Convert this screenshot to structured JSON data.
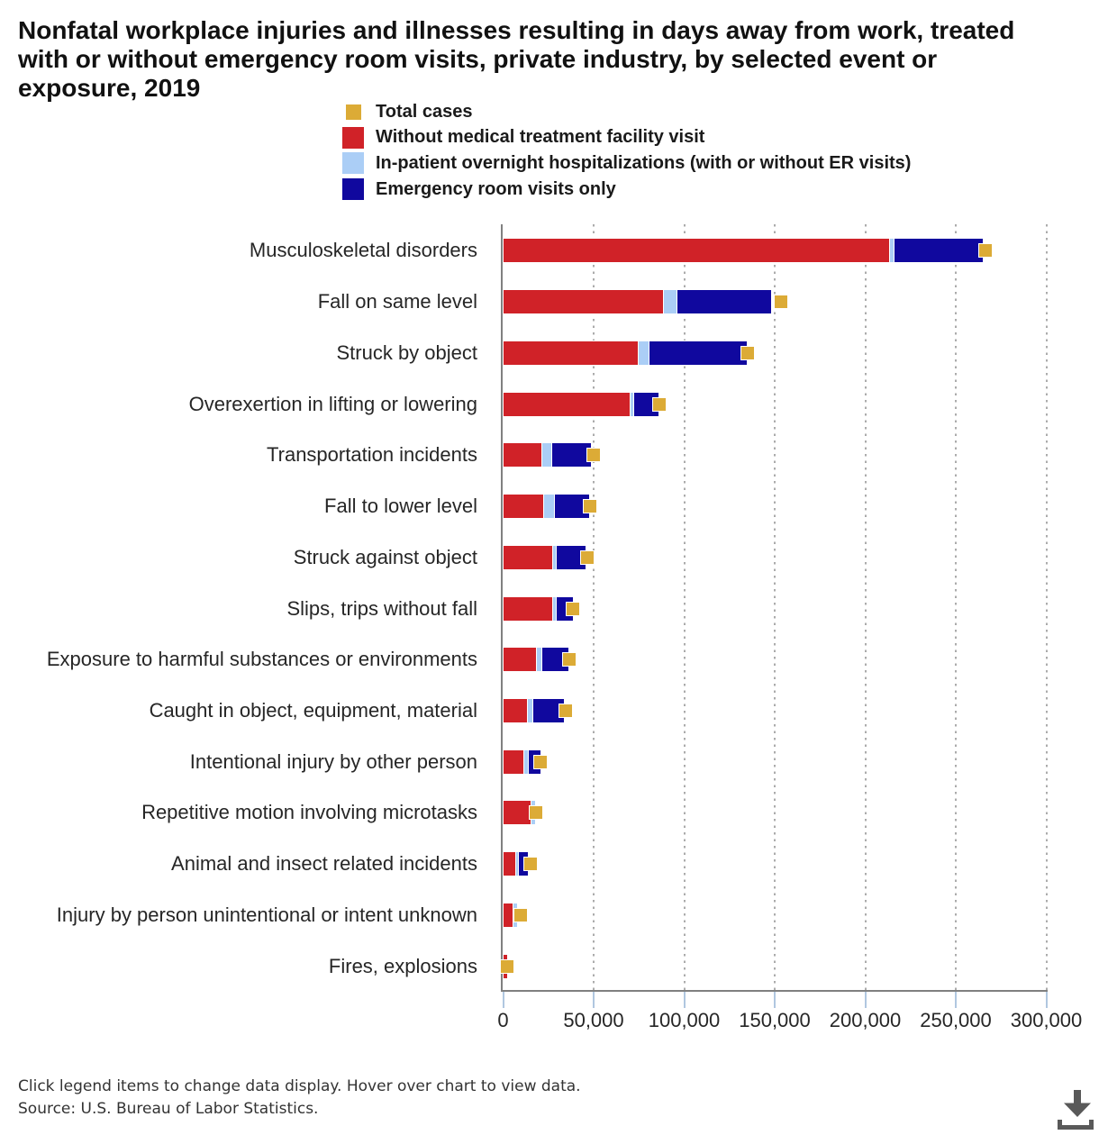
{
  "title": "Nonfatal workplace injuries and illnesses resulting in days away from work, treated with or without emergency room visits, private industry, by selected event or exposure, 2019",
  "colors": {
    "total_cases": "#dcab36",
    "without_medical": "#d02228",
    "hospitalizations": "#abcef6",
    "er_only": "#10089e",
    "axis_line": "#808080",
    "gridline": "#ababab",
    "tick": "#b0c7e0",
    "title_text": "#111111",
    "label_text": "#262626",
    "footer_text": "#333333",
    "download_icon": "#595959"
  },
  "chart_data": {
    "type": "bar",
    "orientation": "horizontal",
    "stacked": true,
    "title": "Nonfatal workplace injuries and illnesses resulting in days away from work, treated with or without emergency room visits, private industry, by selected event or exposure, 2019",
    "categories": [
      "Musculoskeletal disorders",
      "Fall on same level",
      "Struck by object",
      "Overexertion in lifting or lowering",
      "Transportation incidents",
      "Fall to lower level",
      "Struck against object",
      "Slips, trips without fall",
      "Exposure to harmful substances or environments",
      "Caught in object, equipment, material",
      "Intentional injury by other person",
      "Repetitive motion involving microtasks",
      "Animal and insect related incidents",
      "Injury by person unintentional or intent unknown",
      "Fires, explosions"
    ],
    "series": [
      {
        "name": "Total cases",
        "render": "square-marker",
        "color_key": "total_cases",
        "values": [
          266530,
          153500,
          135000,
          86420,
          49950,
          48250,
          46500,
          38800,
          36720,
          34480,
          20750,
          18000,
          15020,
          9900,
          2400
        ]
      },
      {
        "name": "Without medical treatment facility visit",
        "render": "bar",
        "color_key": "without_medical",
        "values": [
          213850,
          88660,
          74970,
          70250,
          21440,
          22540,
          27460,
          27760,
          18760,
          13580,
          11740,
          15820,
          7200,
          5800,
          2400
        ]
      },
      {
        "name": "In-patient overnight hospitalizations (with or without ER visits)",
        "render": "bar",
        "color_key": "hospitalizations",
        "values": [
          2430,
          7560,
          5900,
          2000,
          5700,
          5970,
          1990,
          1740,
          2800,
          3200,
          2540,
          1990,
          1600,
          2000,
          0
        ]
      },
      {
        "name": "Emergency room visits only",
        "render": "bar",
        "color_key": "er_only",
        "values": [
          48780,
          51940,
          53900,
          13400,
          21520,
          19090,
          15840,
          8840,
          14460,
          16850,
          6320,
          0,
          5030,
          0,
          0
        ]
      }
    ],
    "x_axis": {
      "min": 0,
      "max": 300000,
      "tick_interval": 50000,
      "tick_labels": [
        "0",
        "50,000",
        "100,000",
        "150,000",
        "200,000",
        "250,000",
        "300,000"
      ]
    },
    "legend_position": "top",
    "gridline_style": "dotted-vertical"
  },
  "footer": {
    "note": "Click legend items to change data display. Hover over chart to view data.",
    "source": "Source: U.S. Bureau of Labor Statistics."
  }
}
